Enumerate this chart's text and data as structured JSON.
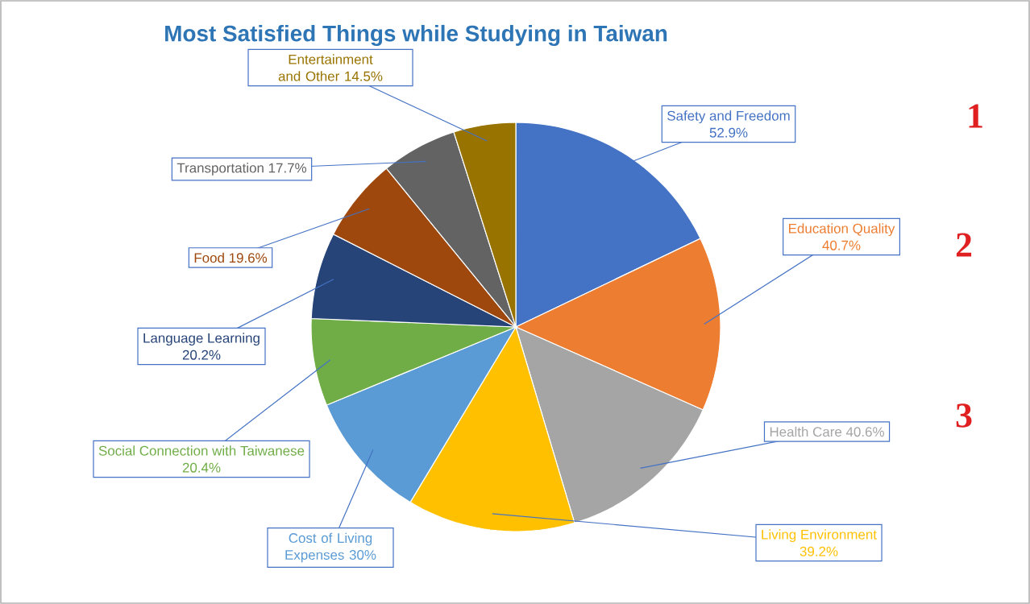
{
  "chart_data": {
    "type": "pie",
    "title": "Most Satisfied Things while Studying in Taiwan",
    "categories": [
      "Safety and Freedom",
      "Education Quality",
      "Health Care",
      "Living Environment",
      "Cost of Living Expenses",
      "Social Connection with Taiwanese",
      "Language Learning",
      "Food",
      "Transportation",
      "Entertainment and Other"
    ],
    "values": [
      52.9,
      40.7,
      40.6,
      39.2,
      30,
      20.4,
      20.2,
      19.6,
      17.7,
      14.5
    ],
    "value_labels": [
      "52.9%",
      "40.7%",
      "40.6%",
      "39.2%",
      "30%",
      "20.4%",
      "20.2%",
      "19.6%",
      "17.7%",
      "14.5%"
    ],
    "colors": [
      "#4472c4",
      "#ed7d31",
      "#a5a5a5",
      "#ffc000",
      "#5b9bd5",
      "#70ad47",
      "#264478",
      "#9e480e",
      "#636363",
      "#997300"
    ],
    "annotations": [
      "1",
      "2",
      "3"
    ]
  }
}
